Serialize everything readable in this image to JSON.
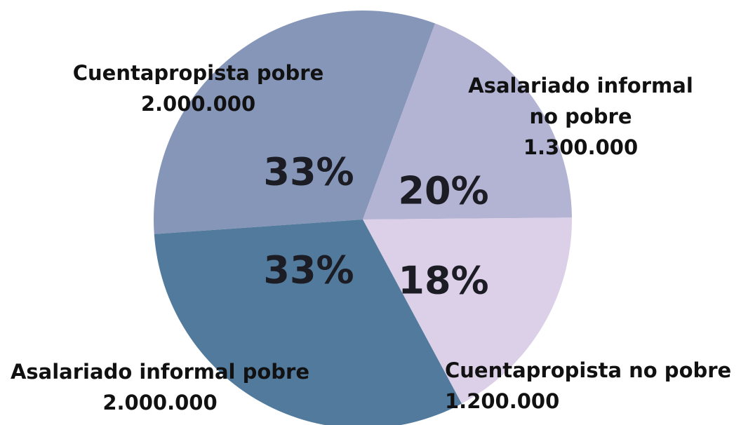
{
  "chart_data": {
    "type": "pie",
    "categories": [
      "Cuentapropista pobre",
      "Asalariado informal no pobre",
      "Cuentapropista no pobre",
      "Asalariado informal pobre"
    ],
    "values": [
      33,
      20,
      18,
      33
    ],
    "value_labels": [
      "33%",
      "20%",
      "18%",
      "33%"
    ],
    "amounts": [
      2000000,
      1300000,
      1200000,
      2000000
    ],
    "amount_labels": [
      "2.000.000",
      "1.300.000",
      "1.200.000",
      "2.000.000"
    ],
    "colors": [
      "#8696b8",
      "#b3b3d3",
      "#dcd0e8",
      "#527a9c"
    ]
  }
}
